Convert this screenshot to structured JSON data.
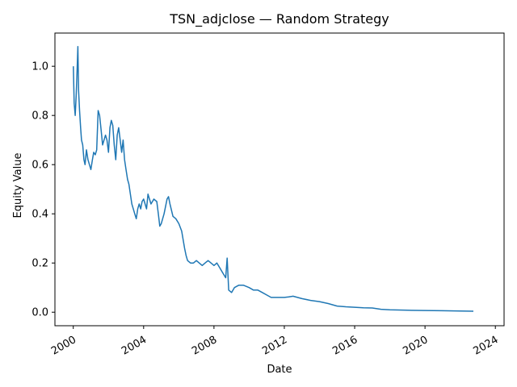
{
  "chart_data": {
    "type": "line",
    "title": "TSN_adjclose — Random Strategy",
    "xlabel": "Date",
    "ylabel": "Equity Value",
    "xlim": [
      "1998-12-16",
      "2024-06-30"
    ],
    "ylim": [
      -0.055,
      1.135
    ],
    "grid": false,
    "line_color": "#1f77b4",
    "x_ticks": [
      "2000",
      "2004",
      "2008",
      "2012",
      "2016",
      "2020",
      "2024"
    ],
    "y_ticks": [
      "0.0",
      "0.2",
      "0.4",
      "0.6",
      "0.8",
      "1.0"
    ],
    "series": [
      {
        "x": [
          "2000-01-03",
          "2000-01-20",
          "2000-02-10",
          "2000-03-01",
          "2000-03-20",
          "2000-04-05",
          "2000-04-20",
          "2000-05-10",
          "2000-06-01",
          "2000-06-20",
          "2000-07-15",
          "2000-08-10",
          "2000-09-01",
          "2000-10-01",
          "2000-11-01",
          "2000-12-01",
          "2001-01-01",
          "2001-02-01",
          "2001-03-01",
          "2001-04-01",
          "2001-05-01",
          "2001-06-01",
          "2001-07-01",
          "2001-08-01",
          "2001-09-01",
          "2001-10-01",
          "2001-11-01",
          "2001-12-01",
          "2002-01-01",
          "2002-02-01",
          "2002-03-01",
          "2002-04-01",
          "2002-05-01",
          "2002-06-01",
          "2002-07-01",
          "2002-08-01",
          "2002-09-01",
          "2002-10-01",
          "2002-11-01",
          "2002-12-01",
          "2003-01-01",
          "2003-02-01",
          "2003-03-01",
          "2003-04-01",
          "2003-05-01",
          "2003-06-01",
          "2003-07-01",
          "2003-08-01",
          "2003-09-01",
          "2003-10-01",
          "2003-11-01",
          "2003-12-01",
          "2004-01-01",
          "2004-02-01",
          "2004-03-01",
          "2004-04-01",
          "2004-06-01",
          "2004-08-01",
          "2004-10-01",
          "2004-11-01",
          "2004-12-01",
          "2005-01-01",
          "2005-03-01",
          "2005-05-01",
          "2005-06-01",
          "2005-07-01",
          "2005-09-01",
          "2005-11-01",
          "2006-01-01",
          "2006-03-01",
          "2006-05-01",
          "2006-06-01",
          "2006-07-01",
          "2006-09-01",
          "2006-11-01",
          "2007-01-01",
          "2007-03-01",
          "2007-05-01",
          "2007-07-01",
          "2007-09-01",
          "2007-11-01",
          "2008-01-01",
          "2008-03-01",
          "2008-05-01",
          "2008-07-01",
          "2008-09-01",
          "2008-10-01",
          "2008-11-01",
          "2009-01-01",
          "2009-03-01",
          "2009-06-01",
          "2009-09-01",
          "2010-01-01",
          "2010-04-01",
          "2010-07-01",
          "2010-10-01",
          "2011-01-01",
          "2011-04-01",
          "2011-07-01",
          "2012-01-01",
          "2012-04-01",
          "2012-07-01",
          "2013-01-01",
          "2013-07-01",
          "2014-01-01",
          "2014-07-01",
          "2015-01-01",
          "2015-07-01",
          "2016-01-01",
          "2016-07-01",
          "2017-01-01",
          "2017-07-01",
          "2018-01-01",
          "2019-01-01",
          "2020-01-01",
          "2021-01-01",
          "2022-01-01",
          "2022-10-01"
        ],
        "y": [
          1.0,
          0.85,
          0.8,
          0.88,
          0.98,
          1.08,
          0.9,
          0.82,
          0.75,
          0.7,
          0.68,
          0.62,
          0.6,
          0.66,
          0.62,
          0.6,
          0.58,
          0.62,
          0.65,
          0.64,
          0.66,
          0.82,
          0.8,
          0.74,
          0.68,
          0.7,
          0.72,
          0.7,
          0.65,
          0.75,
          0.78,
          0.76,
          0.68,
          0.62,
          0.72,
          0.75,
          0.7,
          0.65,
          0.7,
          0.62,
          0.58,
          0.54,
          0.52,
          0.48,
          0.44,
          0.42,
          0.4,
          0.38,
          0.42,
          0.44,
          0.42,
          0.45,
          0.46,
          0.44,
          0.42,
          0.48,
          0.44,
          0.46,
          0.45,
          0.4,
          0.35,
          0.36,
          0.4,
          0.46,
          0.47,
          0.44,
          0.39,
          0.38,
          0.36,
          0.33,
          0.26,
          0.23,
          0.21,
          0.2,
          0.2,
          0.21,
          0.2,
          0.19,
          0.2,
          0.21,
          0.2,
          0.19,
          0.2,
          0.18,
          0.16,
          0.14,
          0.22,
          0.09,
          0.08,
          0.1,
          0.11,
          0.11,
          0.1,
          0.09,
          0.09,
          0.08,
          0.07,
          0.06,
          0.06,
          0.06,
          0.062,
          0.065,
          0.055,
          0.048,
          0.043,
          0.035,
          0.025,
          0.022,
          0.02,
          0.018,
          0.017,
          0.012,
          0.01,
          0.008,
          0.007,
          0.006,
          0.005,
          0.004
        ]
      }
    ]
  }
}
